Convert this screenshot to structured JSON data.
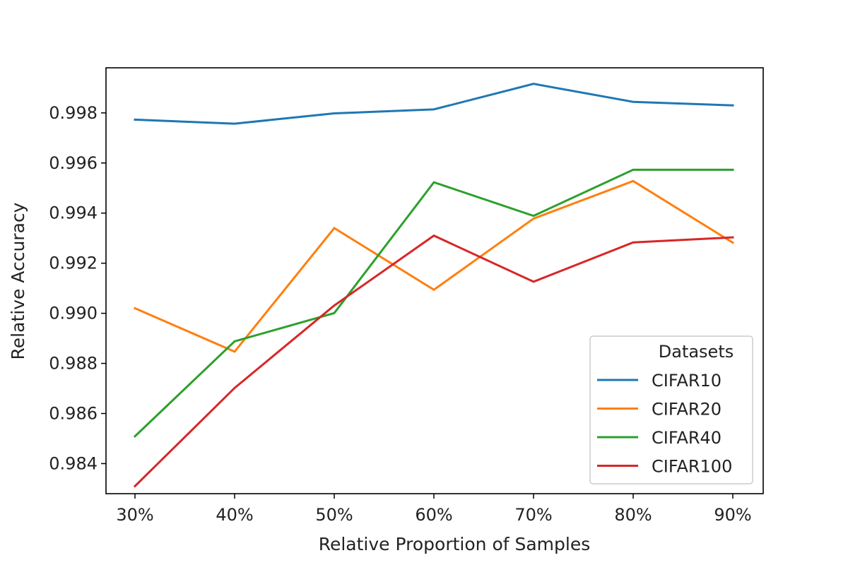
{
  "chart_data": {
    "type": "line",
    "title": "",
    "xlabel": "Relative Proportion of Samples",
    "ylabel": "Relative Accuracy",
    "categories": [
      "30%",
      "40%",
      "50%",
      "60%",
      "70%",
      "80%",
      "90%"
    ],
    "ylim": [
      0.9828,
      0.9998
    ],
    "yticks": [
      0.984,
      0.986,
      0.988,
      0.99,
      0.992,
      0.994,
      0.996,
      0.998
    ],
    "ytick_labels": [
      "0.984",
      "0.986",
      "0.988",
      "0.990",
      "0.992",
      "0.994",
      "0.996",
      "0.998"
    ],
    "grid": false,
    "legend": {
      "title": "Datasets",
      "placement": "lower-right"
    },
    "series": [
      {
        "name": "CIFAR10",
        "color": "#1f77b4",
        "values": [
          0.99773,
          0.99757,
          0.99798,
          0.99814,
          0.99916,
          0.99844,
          0.9983
        ]
      },
      {
        "name": "CIFAR20",
        "color": "#ff7f0e",
        "values": [
          0.9902,
          0.98847,
          0.9934,
          0.99094,
          0.99378,
          0.99528,
          0.99282
        ]
      },
      {
        "name": "CIFAR40",
        "color": "#2ca02c",
        "values": [
          0.98509,
          0.98888,
          0.99001,
          0.99523,
          0.99389,
          0.99573,
          0.99573
        ]
      },
      {
        "name": "CIFAR100",
        "color": "#d62728",
        "values": [
          0.9831,
          0.98702,
          0.99031,
          0.9931,
          0.99126,
          0.99283,
          0.99303
        ]
      }
    ]
  }
}
